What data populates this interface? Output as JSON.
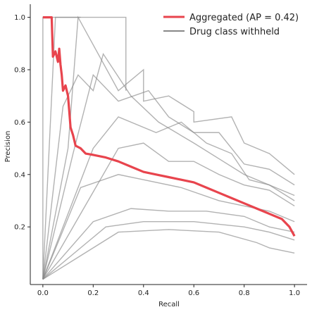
{
  "chart_data": {
    "type": "line",
    "title": "",
    "xlabel": "Recall",
    "ylabel": "Precision",
    "xlim": [
      -0.05,
      1.05
    ],
    "ylim": [
      -0.02,
      1.05
    ],
    "x_ticks": [
      0.0,
      0.2,
      0.4,
      0.6,
      0.8,
      1.0
    ],
    "x_tick_labels": [
      "0.0",
      "0.2",
      "0.4",
      "0.6",
      "0.8",
      "1.0"
    ],
    "y_ticks": [
      0.2,
      0.4,
      0.6,
      0.8,
      1.0
    ],
    "y_tick_labels": [
      "0.2",
      "0.4",
      "0.6",
      "0.8",
      "1.0"
    ],
    "grid": false,
    "legend_position": "top-right",
    "legend": [
      {
        "label": "Aggregated (AP = 0.42)",
        "color": "#e8444d"
      },
      {
        "label": "Drug class withheld",
        "color": "#888888"
      }
    ],
    "aggregated_series": {
      "color": "#e8444d",
      "points": [
        [
          0.0,
          1.0
        ],
        [
          0.035,
          1.0
        ],
        [
          0.04,
          0.85
        ],
        [
          0.05,
          0.87
        ],
        [
          0.06,
          0.83
        ],
        [
          0.065,
          0.88
        ],
        [
          0.07,
          0.82
        ],
        [
          0.075,
          0.78
        ],
        [
          0.08,
          0.72
        ],
        [
          0.09,
          0.74
        ],
        [
          0.1,
          0.7
        ],
        [
          0.105,
          0.64
        ],
        [
          0.11,
          0.58
        ],
        [
          0.12,
          0.55
        ],
        [
          0.13,
          0.51
        ],
        [
          0.15,
          0.5
        ],
        [
          0.17,
          0.48
        ],
        [
          0.2,
          0.475
        ],
        [
          0.25,
          0.465
        ],
        [
          0.3,
          0.45
        ],
        [
          0.35,
          0.43
        ],
        [
          0.4,
          0.41
        ],
        [
          0.45,
          0.4
        ],
        [
          0.5,
          0.39
        ],
        [
          0.55,
          0.38
        ],
        [
          0.6,
          0.37
        ],
        [
          0.65,
          0.35
        ],
        [
          0.7,
          0.33
        ],
        [
          0.75,
          0.31
        ],
        [
          0.8,
          0.29
        ],
        [
          0.85,
          0.27
        ],
        [
          0.9,
          0.25
        ],
        [
          0.95,
          0.23
        ],
        [
          0.98,
          0.2
        ],
        [
          1.0,
          0.165
        ]
      ]
    },
    "withheld_series": [
      {
        "color": "#888888",
        "points": [
          [
            0.0,
            0.0
          ],
          [
            0.0,
            1.0
          ],
          [
            0.15,
            1.0
          ]
        ]
      },
      {
        "color": "#888888",
        "points": [
          [
            0.0,
            0.0
          ],
          [
            0.05,
            1.0
          ],
          [
            0.33,
            1.0
          ],
          [
            0.33,
            0.72
          ]
        ]
      },
      {
        "color": "#888888",
        "points": [
          [
            0.0,
            0.0
          ],
          [
            0.1,
            0.5
          ],
          [
            0.14,
            1.0
          ],
          [
            0.3,
            0.72
          ],
          [
            0.4,
            0.8
          ],
          [
            0.4,
            0.68
          ],
          [
            0.5,
            0.7
          ],
          [
            0.6,
            0.64
          ],
          [
            0.6,
            0.6
          ],
          [
            0.75,
            0.62
          ],
          [
            0.8,
            0.52
          ],
          [
            0.9,
            0.48
          ],
          [
            1.0,
            0.4
          ]
        ]
      },
      {
        "color": "#888888",
        "points": [
          [
            0.0,
            0.0
          ],
          [
            0.12,
            0.48
          ],
          [
            0.2,
            0.78
          ],
          [
            0.3,
            0.68
          ],
          [
            0.42,
            0.72
          ],
          [
            0.5,
            0.62
          ],
          [
            0.6,
            0.56
          ],
          [
            0.7,
            0.56
          ],
          [
            0.8,
            0.44
          ],
          [
            0.9,
            0.42
          ],
          [
            1.0,
            0.36
          ]
        ]
      },
      {
        "color": "#888888",
        "points": [
          [
            0.0,
            0.0
          ],
          [
            0.2,
            0.5
          ],
          [
            0.3,
            0.62
          ],
          [
            0.45,
            0.56
          ],
          [
            0.55,
            0.6
          ],
          [
            0.65,
            0.52
          ],
          [
            0.75,
            0.48
          ],
          [
            0.82,
            0.38
          ],
          [
            0.9,
            0.36
          ],
          [
            1.0,
            0.32
          ]
        ]
      },
      {
        "color": "#888888",
        "points": [
          [
            0.0,
            0.0
          ],
          [
            0.3,
            0.5
          ],
          [
            0.4,
            0.52
          ],
          [
            0.5,
            0.45
          ],
          [
            0.6,
            0.45
          ],
          [
            0.7,
            0.4
          ],
          [
            0.8,
            0.36
          ],
          [
            0.9,
            0.34
          ],
          [
            1.0,
            0.28
          ]
        ]
      },
      {
        "color": "#888888",
        "points": [
          [
            0.0,
            0.0
          ],
          [
            0.15,
            0.35
          ],
          [
            0.3,
            0.4
          ],
          [
            0.4,
            0.38
          ],
          [
            0.55,
            0.35
          ],
          [
            0.7,
            0.3
          ],
          [
            0.8,
            0.28
          ],
          [
            0.9,
            0.26
          ],
          [
            1.0,
            0.22
          ]
        ]
      },
      {
        "color": "#888888",
        "points": [
          [
            0.0,
            0.0
          ],
          [
            0.2,
            0.22
          ],
          [
            0.35,
            0.27
          ],
          [
            0.5,
            0.26
          ],
          [
            0.65,
            0.26
          ],
          [
            0.8,
            0.24
          ],
          [
            0.9,
            0.2
          ],
          [
            1.0,
            0.18
          ]
        ]
      },
      {
        "color": "#888888",
        "points": [
          [
            0.0,
            0.0
          ],
          [
            0.25,
            0.2
          ],
          [
            0.4,
            0.22
          ],
          [
            0.6,
            0.22
          ],
          [
            0.8,
            0.2
          ],
          [
            0.9,
            0.18
          ],
          [
            1.0,
            0.15
          ]
        ]
      },
      {
        "color": "#888888",
        "points": [
          [
            0.0,
            0.0
          ],
          [
            0.3,
            0.18
          ],
          [
            0.5,
            0.19
          ],
          [
            0.7,
            0.18
          ],
          [
            0.85,
            0.14
          ],
          [
            0.9,
            0.12
          ],
          [
            1.0,
            0.1
          ]
        ]
      },
      {
        "color": "#888888",
        "points": [
          [
            0.0,
            0.0
          ],
          [
            0.08,
            0.66
          ],
          [
            0.14,
            0.78
          ],
          [
            0.2,
            0.72
          ],
          [
            0.24,
            0.86
          ],
          [
            0.35,
            0.7
          ],
          [
            0.46,
            0.6
          ],
          [
            0.6,
            0.52
          ],
          [
            0.7,
            0.46
          ],
          [
            0.8,
            0.4
          ],
          [
            0.9,
            0.36
          ],
          [
            1.0,
            0.3
          ]
        ]
      }
    ]
  }
}
